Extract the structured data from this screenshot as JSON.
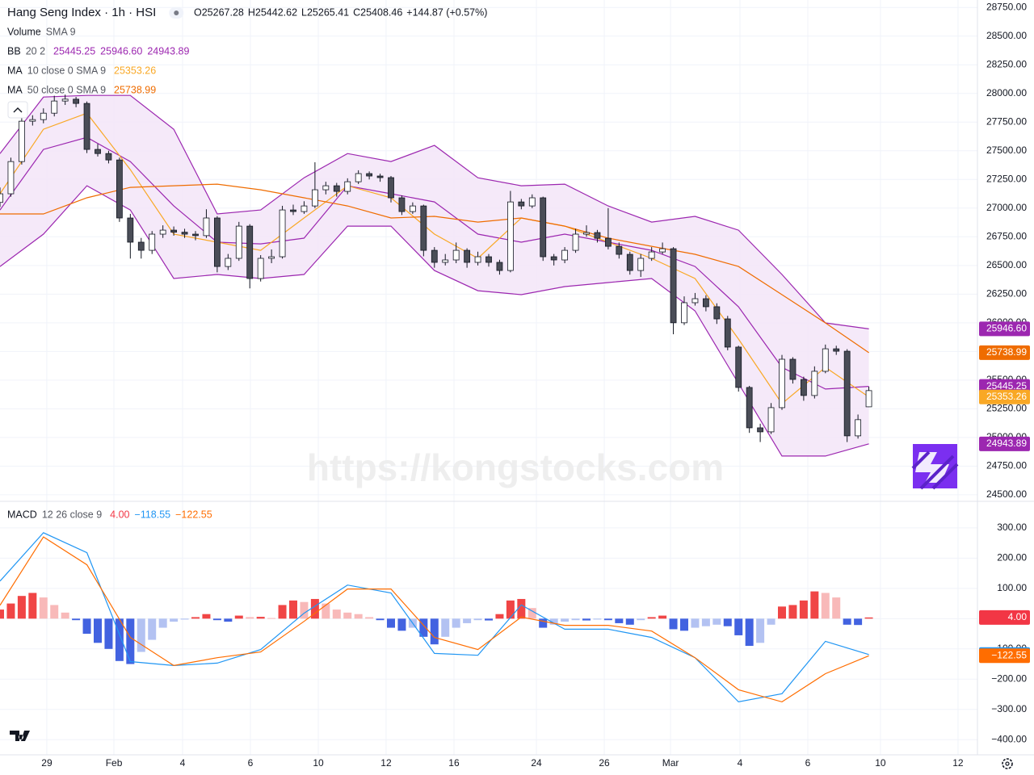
{
  "chart_data": {
    "type": "candlestick",
    "title": "Hang Seng Index · 1h · HSI",
    "ohlc_summary": [
      "O25267.28",
      "H25442.62",
      "L25265.41",
      "C25408.46",
      "+144.87 (+0.57%)"
    ],
    "up_color": "#ffffff",
    "down_color": "#4a4d57",
    "wick_color": "#131722",
    "xlim": [
      0,
      90
    ],
    "xticks": [
      {
        "value": 4.31,
        "label": "29"
      },
      {
        "value": 10.49,
        "label": "Feb"
      },
      {
        "value": 16.81,
        "label": "4"
      },
      {
        "value": 23.06,
        "label": "6"
      },
      {
        "value": 29.31,
        "label": "10"
      },
      {
        "value": 35.55,
        "label": "12"
      },
      {
        "value": 41.8,
        "label": "16"
      },
      {
        "value": 49.39,
        "label": "24"
      },
      {
        "value": 55.64,
        "label": "26"
      },
      {
        "value": 61.74,
        "label": "Mar"
      },
      {
        "value": 68.13,
        "label": "4"
      },
      {
        "value": 74.38,
        "label": "6"
      },
      {
        "value": 81.07,
        "label": "10"
      },
      {
        "value": 88.21,
        "label": "12"
      }
    ],
    "ylim": [
      24450,
      28815
    ],
    "yticks": [
      {
        "value": 24500,
        "label": "24500.00"
      },
      {
        "value": 24750,
        "label": "24750.00"
      },
      {
        "value": 25000,
        "label": "25000.00"
      },
      {
        "value": 25250,
        "label": "25250.00"
      },
      {
        "value": 25500,
        "label": "25500.00"
      },
      {
        "value": 25750,
        "label": "25750.00"
      },
      {
        "value": 26000,
        "label": "26000.00"
      },
      {
        "value": 26250,
        "label": "26250.00"
      },
      {
        "value": 26500,
        "label": "26500.00"
      },
      {
        "value": 26750,
        "label": "26750.00"
      },
      {
        "value": 27000,
        "label": "27000.00"
      },
      {
        "value": 27250,
        "label": "27250.00"
      },
      {
        "value": 27500,
        "label": "27500.00"
      },
      {
        "value": 27750,
        "label": "27750.00"
      },
      {
        "value": 28000,
        "label": "28000.00"
      },
      {
        "value": 28250,
        "label": "28250.00"
      },
      {
        "value": 28500,
        "label": "28500.00"
      },
      {
        "value": 28750,
        "label": "28750.00"
      }
    ],
    "grid": true,
    "x": [
      0,
      1,
      2,
      3,
      4,
      5,
      6,
      7,
      8,
      9,
      10,
      11,
      12,
      13,
      14,
      15,
      16,
      17,
      18,
      19,
      20,
      21,
      22,
      23,
      24,
      25,
      26,
      27,
      28,
      29,
      30,
      31,
      32,
      33,
      34,
      35,
      36,
      37,
      38,
      39,
      40,
      41,
      42,
      43,
      44,
      45,
      46,
      47,
      48,
      49,
      50,
      51,
      52,
      53,
      54,
      55,
      56,
      57,
      58,
      59,
      60,
      61,
      62,
      63,
      64,
      65,
      66,
      67,
      68,
      69,
      70,
      71,
      72,
      73,
      74,
      75,
      76,
      77,
      78,
      79,
      80
    ],
    "ohlc": [
      [
        27050,
        27180,
        27010,
        27125
      ],
      [
        27125,
        27440,
        27100,
        27406
      ],
      [
        27406,
        27790,
        27380,
        27758
      ],
      [
        27758,
        27810,
        27720,
        27772
      ],
      [
        27772,
        27870,
        27740,
        27828
      ],
      [
        27828,
        27980,
        27800,
        27934
      ],
      [
        27934,
        27990,
        27900,
        27950
      ],
      [
        27950,
        27970,
        27880,
        27913
      ],
      [
        27913,
        27930,
        27480,
        27512
      ],
      [
        27512,
        27560,
        27450,
        27476
      ],
      [
        27476,
        27500,
        27390,
        27420
      ],
      [
        27420,
        27440,
        26880,
        26914
      ],
      [
        26914,
        26950,
        26560,
        26703
      ],
      [
        26703,
        26740,
        26560,
        26632
      ],
      [
        26632,
        26800,
        26600,
        26773
      ],
      [
        26773,
        26850,
        26740,
        26808
      ],
      [
        26808,
        26840,
        26760,
        26790
      ],
      [
        26790,
        26820,
        26740,
        26773
      ],
      [
        26773,
        26800,
        26720,
        26760
      ],
      [
        26760,
        26990,
        26740,
        26914
      ],
      [
        26914,
        26930,
        26440,
        26491
      ],
      [
        26491,
        26600,
        26460,
        26562
      ],
      [
        26562,
        26880,
        26540,
        26843
      ],
      [
        26843,
        26860,
        26300,
        26386
      ],
      [
        26386,
        26590,
        26360,
        26562
      ],
      [
        26562,
        26640,
        26520,
        26576
      ],
      [
        26576,
        27020,
        26560,
        26984
      ],
      [
        26984,
        27030,
        26940,
        26970
      ],
      [
        26970,
        27060,
        26950,
        27019
      ],
      [
        27019,
        27400,
        27000,
        27160
      ],
      [
        27160,
        27230,
        27120,
        27195
      ],
      [
        27195,
        27220,
        27100,
        27146
      ],
      [
        27146,
        27260,
        27120,
        27230
      ],
      [
        27230,
        27330,
        27210,
        27301
      ],
      [
        27301,
        27320,
        27250,
        27280
      ],
      [
        27280,
        27300,
        27230,
        27266
      ],
      [
        27266,
        27280,
        27050,
        27090
      ],
      [
        27090,
        27110,
        26940,
        26970
      ],
      [
        26970,
        27050,
        26950,
        27019
      ],
      [
        27019,
        27030,
        26580,
        26632
      ],
      [
        26632,
        26660,
        26480,
        26527
      ],
      [
        26527,
        26600,
        26500,
        26548
      ],
      [
        26548,
        26700,
        26520,
        26632
      ],
      [
        26632,
        26650,
        26480,
        26527
      ],
      [
        26527,
        26620,
        26500,
        26576
      ],
      [
        26576,
        26600,
        26490,
        26527
      ],
      [
        26527,
        26550,
        26420,
        26456
      ],
      [
        26456,
        27150,
        26440,
        27054
      ],
      [
        27054,
        27080,
        26990,
        27019
      ],
      [
        27019,
        27120,
        27000,
        27090
      ],
      [
        27090,
        27100,
        26540,
        26576
      ],
      [
        26576,
        26600,
        26500,
        26548
      ],
      [
        26548,
        26660,
        26520,
        26632
      ],
      [
        26632,
        26820,
        26610,
        26773
      ],
      [
        26773,
        26850,
        26750,
        26787
      ],
      [
        26787,
        26810,
        26700,
        26737
      ],
      [
        26737,
        27000,
        26640,
        26667
      ],
      [
        26667,
        26700,
        26560,
        26597
      ],
      [
        26597,
        26620,
        26420,
        26456
      ],
      [
        26456,
        26600,
        26400,
        26562
      ],
      [
        26562,
        26660,
        26540,
        26618
      ],
      [
        26618,
        26700,
        26600,
        26646
      ],
      [
        26646,
        26660,
        25900,
        26000
      ],
      [
        26000,
        26230,
        25980,
        26175
      ],
      [
        26175,
        26260,
        26150,
        26210
      ],
      [
        26210,
        26240,
        26100,
        26140
      ],
      [
        26140,
        26170,
        25990,
        26034
      ],
      [
        26034,
        26060,
        25760,
        25788
      ],
      [
        25788,
        25800,
        25400,
        25436
      ],
      [
        25436,
        25450,
        25040,
        25084
      ],
      [
        25084,
        25120,
        24960,
        25049
      ],
      [
        25049,
        25300,
        25030,
        25260
      ],
      [
        25260,
        25720,
        25240,
        25682
      ],
      [
        25682,
        25700,
        25470,
        25506
      ],
      [
        25506,
        25530,
        25320,
        25366
      ],
      [
        25366,
        25620,
        25340,
        25577
      ],
      [
        25577,
        25810,
        25560,
        25773
      ],
      [
        25773,
        25800,
        25720,
        25752
      ],
      [
        25752,
        25770,
        24960,
        25014
      ],
      [
        25014,
        25200,
        24990,
        25155
      ],
      [
        25267.28,
        25442.62,
        25265.41,
        25408.46
      ]
    ],
    "last_price_label": "25408.46",
    "line_x": [
      0,
      4,
      8,
      12,
      16,
      20,
      24,
      28,
      32,
      36,
      40,
      44,
      48,
      52,
      56,
      60,
      64,
      68,
      72,
      76,
      80
    ],
    "indicators": [
      {
        "name": "Volume",
        "params": "SMA 9"
      },
      {
        "name": "BB",
        "params": "20 2",
        "values_text": [
          "25445.25",
          "25946.60",
          "24943.89"
        ],
        "color": "#9c27b0",
        "fill": "#f3e5f8",
        "lines": [
          [
            26984,
            27512,
            27617,
            27406,
            27019,
            26703,
            26688,
            26738,
            27195,
            27125,
            27054,
            26773,
            26703,
            26773,
            26703,
            26632,
            26491,
            26140,
            25612,
            25422,
            25445.25
          ],
          [
            27476,
            27969,
            27983,
            27983,
            27688,
            26949,
            26984,
            27265,
            27476,
            27406,
            27547,
            27265,
            27195,
            27209,
            27019,
            26878,
            26928,
            26808,
            26421,
            25999,
            25946.6
          ],
          [
            26491,
            26773,
            27195,
            26984,
            26386,
            26421,
            26386,
            26421,
            26843,
            26843,
            26456,
            26280,
            26245,
            26316,
            26351,
            26386,
            26104,
            25471,
            24838,
            24838,
            24943.89
          ]
        ]
      },
      {
        "name": "MA",
        "params": "10 close 0 SMA 9",
        "values_text": [
          "25353.26"
        ],
        "color": "#f9a825",
        "lines": [
          [
            27125,
            27688,
            27828,
            27336,
            26773,
            26703,
            26632,
            26914,
            27195,
            27090,
            26773,
            26562,
            26914,
            26843,
            26703,
            26562,
            26386,
            25858,
            25295,
            25612,
            25353.26
          ]
        ]
      },
      {
        "name": "MA",
        "params": "50 close 0 SMA 9",
        "values_text": [
          "25738.99"
        ],
        "color": "#ef6c00",
        "lines": [
          [
            26949,
            26949,
            27090,
            27181,
            27195,
            27209,
            27160,
            27090,
            27019,
            26914,
            26928,
            26878,
            26914,
            26843,
            26738,
            26667,
            26597,
            26491,
            26245,
            25999,
            25738.99
          ]
        ]
      }
    ],
    "watermark": "https://kongstocks.com",
    "macd": {
      "name": "MACD",
      "params": "12 26 close 9",
      "values_text": [
        "4.00",
        "−118.55",
        "−122.55"
      ],
      "colors": [
        "#f23645",
        "#2196f3",
        "#ff6d00"
      ],
      "hist_colors": [
        "#f04545",
        "#f8b9b9",
        "#b3c2f2",
        "#4262e0"
      ],
      "ylim": [
        -450,
        385
      ],
      "yticks": [
        {
          "value": 300,
          "label": "300.00"
        },
        {
          "value": 200,
          "label": "200.00"
        },
        {
          "value": 100,
          "label": "100.00"
        },
        {
          "value": 0,
          "label": "0.00"
        },
        {
          "value": -100,
          "label": "−100.00"
        },
        {
          "value": -200,
          "label": "−200.00"
        },
        {
          "value": -300,
          "label": "−300.00"
        },
        {
          "value": -400,
          "label": "−400.00"
        }
      ],
      "histogram": [
        30,
        50,
        75,
        85,
        70,
        45,
        20,
        -5,
        -50,
        -80,
        -100,
        -140,
        -150,
        -110,
        -70,
        -30,
        -10,
        -3,
        5,
        15,
        -5,
        -10,
        10,
        5,
        6,
        2,
        45,
        60,
        55,
        65,
        50,
        30,
        20,
        15,
        5,
        -5,
        -30,
        -40,
        -30,
        -60,
        -85,
        -60,
        -30,
        -15,
        -5,
        -6,
        15,
        60,
        65,
        35,
        -30,
        -20,
        -10,
        -5,
        -6,
        -3,
        -5,
        -15,
        -20,
        -5,
        5,
        10,
        -35,
        -40,
        -30,
        -25,
        -20,
        -25,
        -55,
        -90,
        -80,
        -20,
        40,
        45,
        60,
        90,
        85,
        70,
        -20,
        -21,
        4.0
      ],
      "lines": [
        [
          124,
          284,
          218,
          -142,
          -155,
          -147,
          -102,
          18,
          111,
          85,
          -115,
          -121,
          45,
          -35,
          -35,
          -62,
          -129,
          -275,
          -248,
          -75,
          -118.55
        ],
        [
          44,
          270,
          178,
          -62,
          -155,
          -129,
          -110,
          -9,
          98,
          98,
          -62,
          -102,
          5,
          -22,
          -22,
          -41,
          -129,
          -235,
          -275,
          -182,
          -122.55
        ]
      ]
    }
  }
}
